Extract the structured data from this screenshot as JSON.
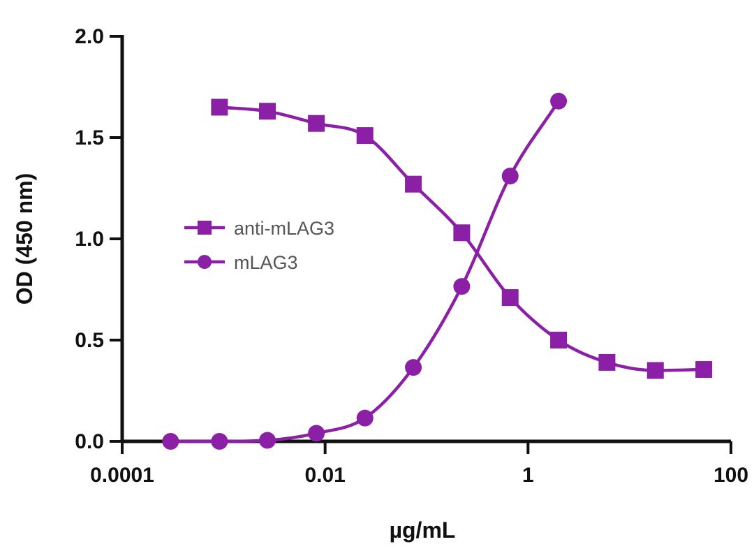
{
  "chart_data": {
    "type": "scatter",
    "title": "",
    "xlabel": "µg/mL",
    "ylabel": "OD (450 nm)",
    "xscale": "log",
    "xlim": [
      0.0001,
      100
    ],
    "ylim": [
      0,
      2.0
    ],
    "x_ticks": [
      0.0001,
      0.01,
      1,
      100
    ],
    "x_tick_labels": [
      "0.0001",
      "0.01",
      "1",
      "100"
    ],
    "y_ticks": [
      0,
      0.5,
      1.0,
      1.5,
      2.0
    ],
    "y_tick_labels": [
      "0.0",
      "0.5",
      "1.0",
      "1.5",
      "2.0"
    ],
    "grid": false,
    "legend_position": "center-left",
    "color": "#8B1FA6",
    "series": [
      {
        "name": "anti-mLAG3",
        "marker": "square",
        "x": [
          0.00091,
          0.0027,
          0.0082,
          0.0247,
          0.0741,
          0.2222,
          0.6667,
          2.0,
          6.0,
          18.0,
          54.0
        ],
        "y": [
          1.65,
          1.63,
          1.57,
          1.51,
          1.27,
          1.03,
          0.71,
          0.5,
          0.39,
          0.35,
          0.355
        ]
      },
      {
        "name": "mLAG3",
        "marker": "circle",
        "x": [
          0.0003,
          0.00091,
          0.0027,
          0.0082,
          0.0247,
          0.0741,
          0.2222,
          0.6667,
          2.0
        ],
        "y": [
          0.0,
          0.0,
          0.005,
          0.04,
          0.115,
          0.365,
          0.765,
          1.31,
          1.68
        ]
      }
    ]
  }
}
